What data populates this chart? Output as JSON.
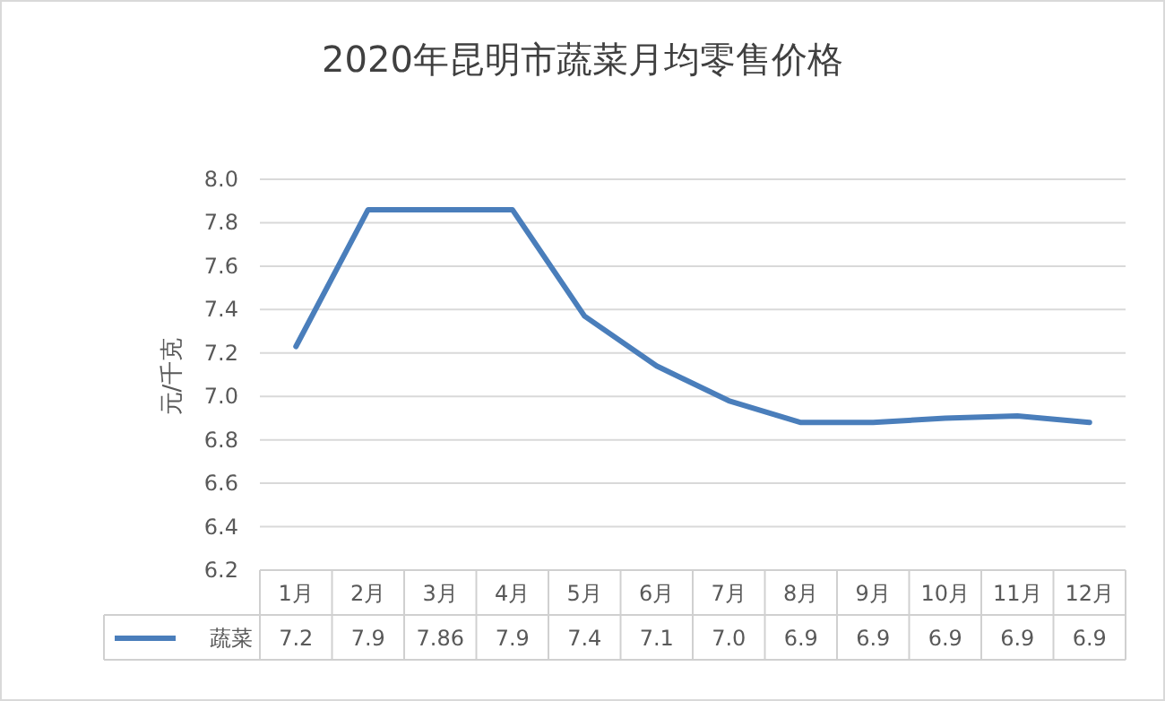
{
  "chart_data": {
    "type": "line",
    "title": "2020年昆明市蔬菜月均零售价格",
    "ylabel": "元/千克",
    "categories": [
      "1月",
      "2月",
      "3月",
      "4月",
      "5月",
      "6月",
      "7月",
      "8月",
      "9月",
      "10月",
      "11月",
      "12月"
    ],
    "series": [
      {
        "name": "蔬菜",
        "color": "#4a7ebb",
        "values": [
          7.23,
          7.86,
          7.86,
          7.86,
          7.37,
          7.14,
          6.98,
          6.88,
          6.88,
          6.9,
          6.91,
          6.88
        ],
        "value_labels": [
          "7.2",
          "7.9",
          "7.86",
          "7.9",
          "7.4",
          "7.1",
          "7.0",
          "6.9",
          "6.9",
          "6.9",
          "6.9",
          "6.9"
        ]
      }
    ],
    "ylim": [
      6.2,
      8.0
    ],
    "yticks": [
      "6.2",
      "6.4",
      "6.6",
      "6.8",
      "7.0",
      "7.2",
      "7.4",
      "7.6",
      "7.8",
      "8.0"
    ],
    "grid": "y",
    "legend": "bottom",
    "line_style": "solid",
    "marker": "none"
  }
}
